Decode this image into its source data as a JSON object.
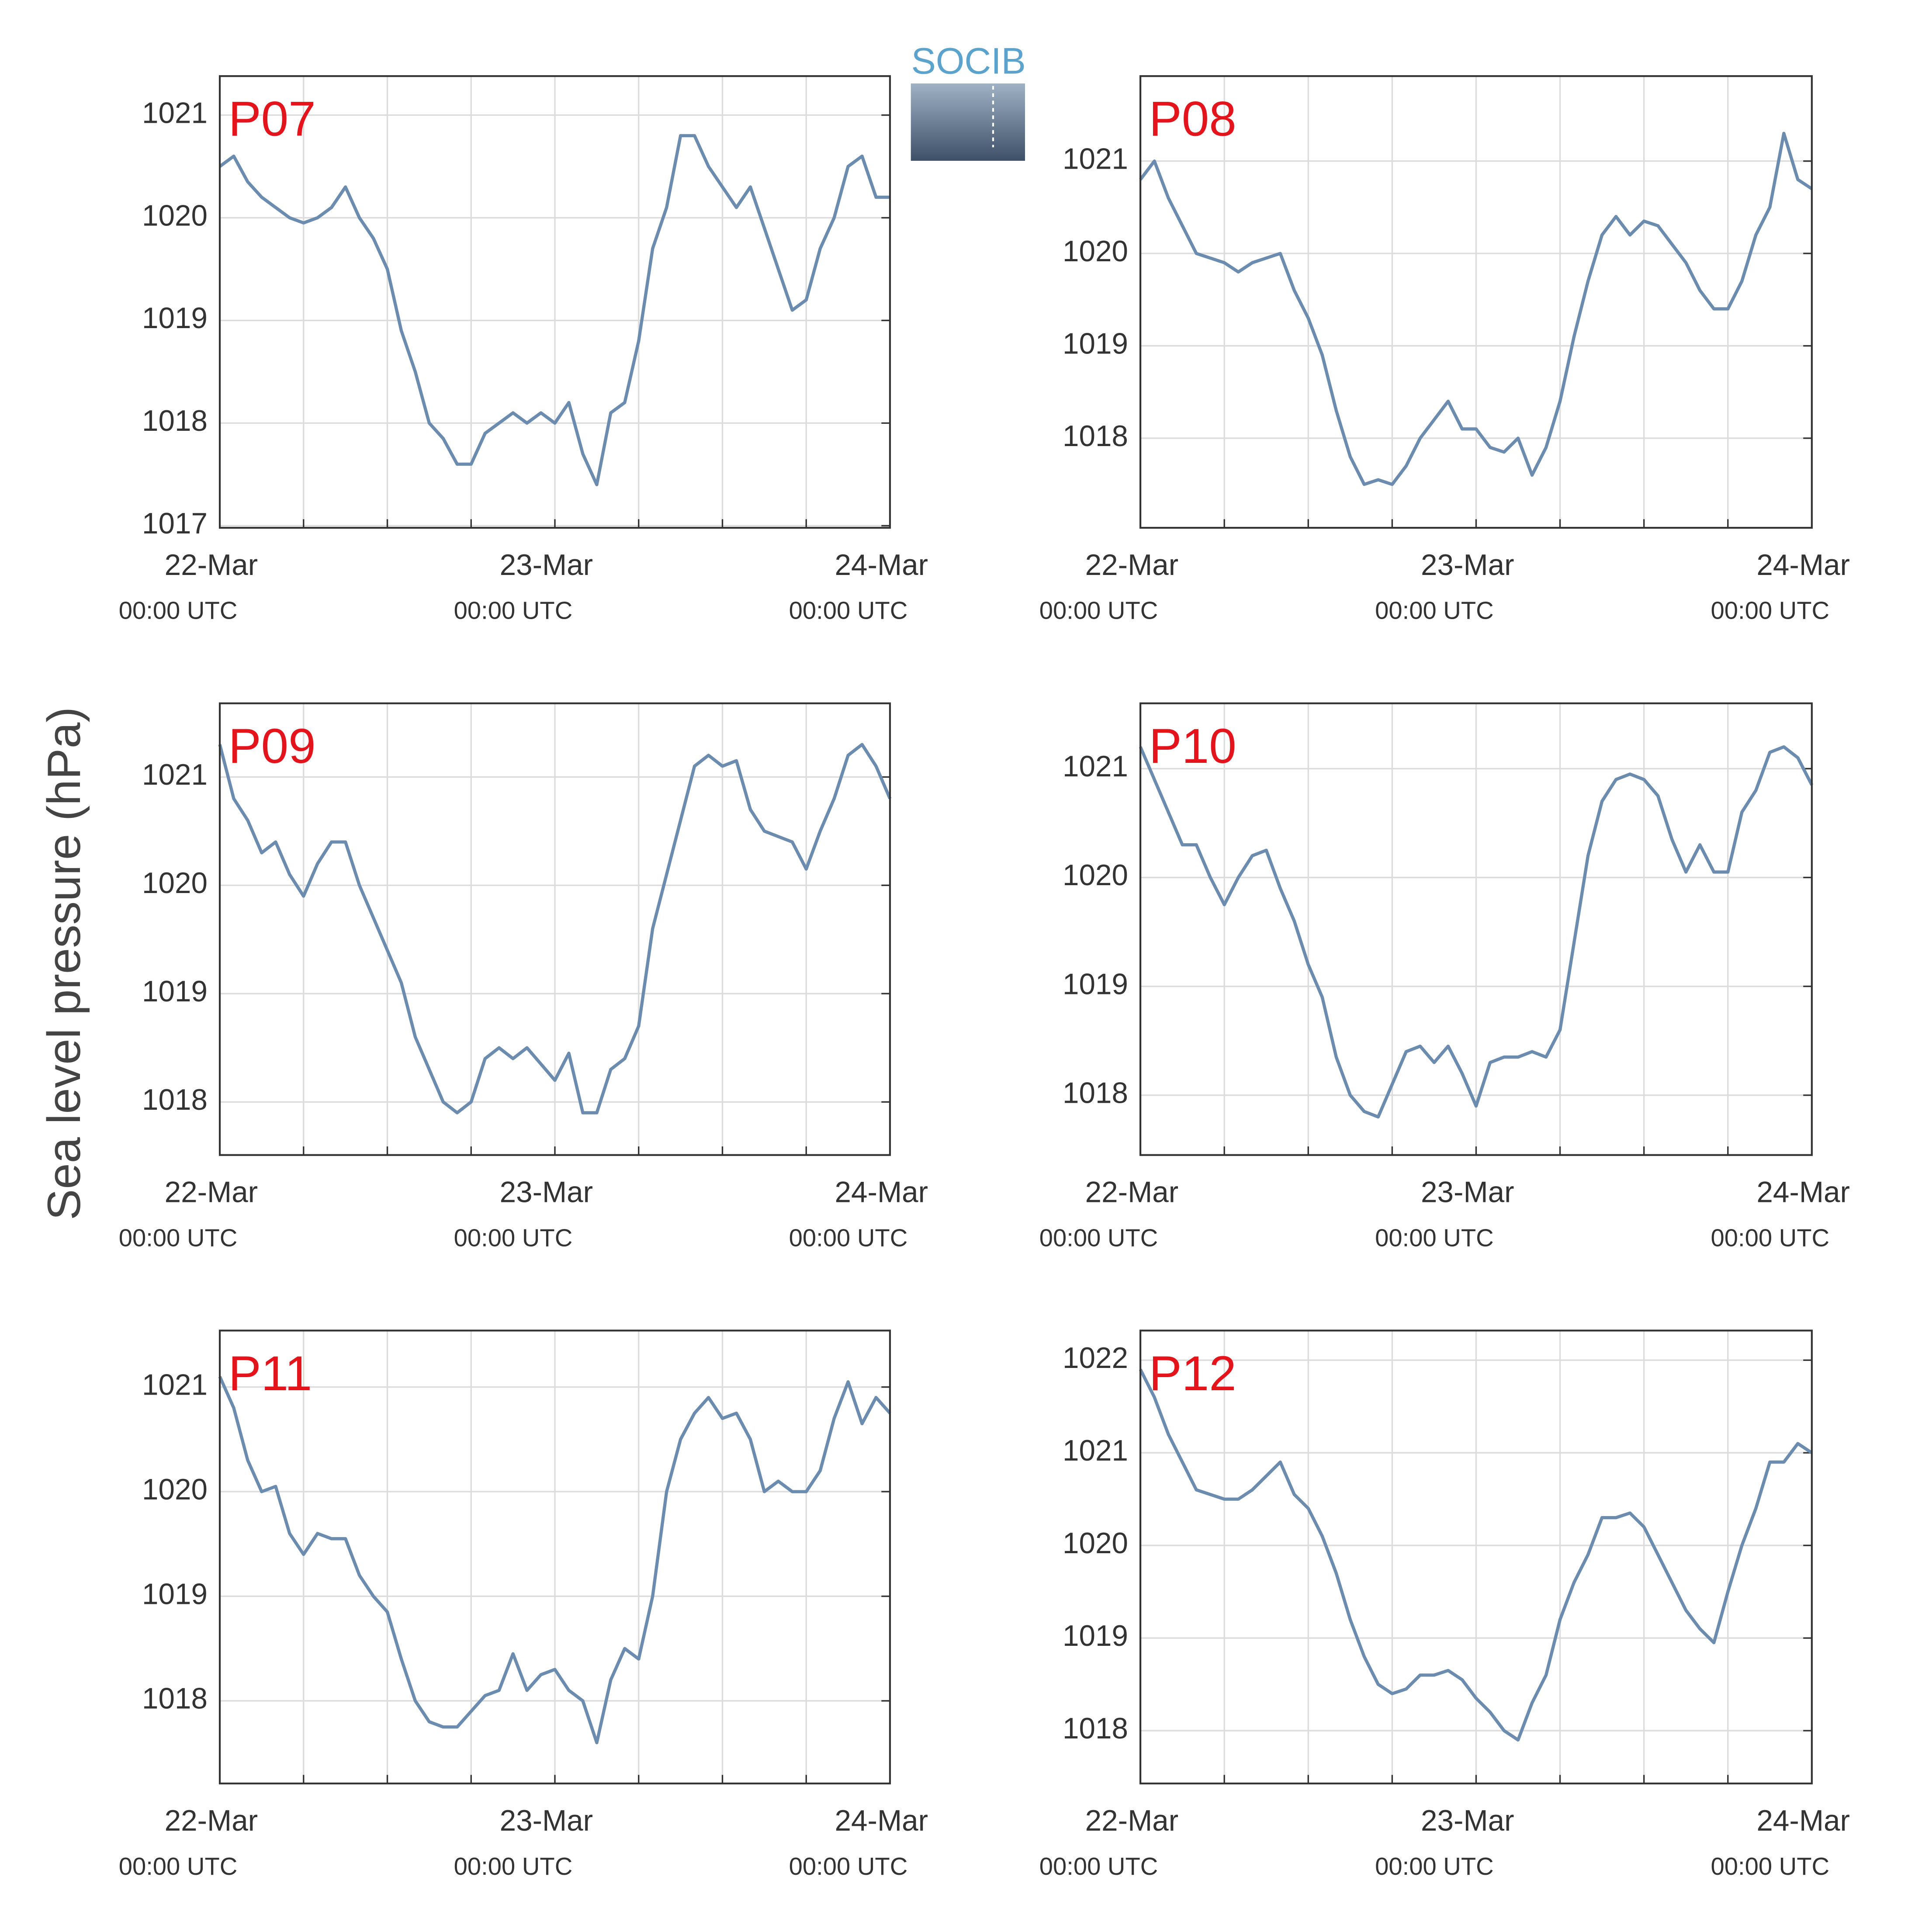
{
  "ylabel": "Sea level pressure (hPa)",
  "logo": "SOCIB",
  "chart_data": [
    {
      "type": "line",
      "title": "P07",
      "x": [
        0,
        1,
        2,
        3,
        4,
        5,
        6,
        7,
        8,
        9,
        10,
        11,
        12,
        13,
        14,
        15,
        16,
        17,
        18,
        19,
        20,
        21,
        22,
        23,
        24,
        25,
        26,
        27,
        28,
        29,
        30,
        31,
        32,
        33,
        34,
        35,
        36,
        37,
        38,
        39,
        40,
        41,
        42,
        43,
        44,
        45,
        46,
        47,
        48
      ],
      "series": [
        {
          "color": "#6b8cae",
          "values": [
            1020.5,
            1020.6,
            1020.35,
            1020.2,
            1020.1,
            1020.0,
            1019.95,
            1020.0,
            1020.1,
            1020.3,
            1020.0,
            1019.8,
            1019.5,
            1018.9,
            1018.5,
            1018.0,
            1017.85,
            1017.6,
            1017.6,
            1017.9,
            1018.0,
            1018.1,
            1018.0,
            1018.1,
            1018.0,
            1018.2,
            1017.7,
            1017.4,
            1018.1,
            1018.2,
            1018.8,
            1019.7,
            1020.1,
            1020.8,
            1020.8,
            1020.5,
            1020.3,
            1020.1,
            1020.3,
            1019.9,
            1019.5,
            1019.1,
            1019.2,
            1019.7,
            1020.0,
            1020.5,
            1020.6,
            1020.2,
            1020.2
          ]
        }
      ],
      "xlim": [
        0,
        48
      ],
      "xticks": [
        {
          "value": 0,
          "label": "22-Mar",
          "sublabel": "00:00 UTC"
        },
        {
          "value": 24,
          "label": "23-Mar",
          "sublabel": "00:00 UTC"
        },
        {
          "value": 48,
          "label": "24-Mar",
          "sublabel": "00:00 UTC"
        }
      ],
      "xminorticks": [
        6,
        12,
        18,
        30,
        36,
        42
      ],
      "ylim": [
        1016.98,
        1021.38
      ],
      "yticks": [
        1017,
        1018,
        1019,
        1020,
        1021
      ],
      "grid": true
    },
    {
      "type": "line",
      "title": "P08",
      "x": [
        0,
        1,
        2,
        3,
        4,
        5,
        6,
        7,
        8,
        9,
        10,
        11,
        12,
        13,
        14,
        15,
        16,
        17,
        18,
        19,
        20,
        21,
        22,
        23,
        24,
        25,
        26,
        27,
        28,
        29,
        30,
        31,
        32,
        33,
        34,
        35,
        36,
        37,
        38,
        39,
        40,
        41,
        42,
        43,
        44,
        45,
        46,
        47,
        48
      ],
      "series": [
        {
          "color": "#6b8cae",
          "values": [
            1020.8,
            1021.0,
            1020.6,
            1020.3,
            1020.0,
            1019.95,
            1019.9,
            1019.8,
            1019.9,
            1019.95,
            1020.0,
            1019.6,
            1019.3,
            1018.9,
            1018.3,
            1017.8,
            1017.5,
            1017.55,
            1017.5,
            1017.7,
            1018.0,
            1018.2,
            1018.4,
            1018.1,
            1018.1,
            1017.9,
            1017.85,
            1018.0,
            1017.6,
            1017.9,
            1018.4,
            1019.1,
            1019.7,
            1020.2,
            1020.4,
            1020.2,
            1020.35,
            1020.3,
            1020.1,
            1019.9,
            1019.6,
            1019.4,
            1019.4,
            1019.7,
            1020.2,
            1020.5,
            1021.3,
            1020.8,
            1020.7
          ]
        }
      ],
      "xlim": [
        0,
        48
      ],
      "xticks": [
        {
          "value": 0,
          "label": "22-Mar",
          "sublabel": "00:00 UTC"
        },
        {
          "value": 24,
          "label": "23-Mar",
          "sublabel": "00:00 UTC"
        },
        {
          "value": 48,
          "label": "24-Mar",
          "sublabel": "00:00 UTC"
        }
      ],
      "xminorticks": [
        6,
        12,
        18,
        30,
        36,
        42
      ],
      "ylim": [
        1017.03,
        1021.92
      ],
      "yticks": [
        1018,
        1019,
        1020,
        1021
      ],
      "grid": true
    },
    {
      "type": "line",
      "title": "P09",
      "x": [
        0,
        1,
        2,
        3,
        4,
        5,
        6,
        7,
        8,
        9,
        10,
        11,
        12,
        13,
        14,
        15,
        16,
        17,
        18,
        19,
        20,
        21,
        22,
        23,
        24,
        25,
        26,
        27,
        28,
        29,
        30,
        31,
        32,
        33,
        34,
        35,
        36,
        37,
        38,
        39,
        40,
        41,
        42,
        43,
        44,
        45,
        46,
        47,
        48
      ],
      "series": [
        {
          "color": "#6b8cae",
          "values": [
            1021.3,
            1020.8,
            1020.6,
            1020.3,
            1020.4,
            1020.1,
            1019.9,
            1020.2,
            1020.4,
            1020.4,
            1020.0,
            1019.7,
            1019.4,
            1019.1,
            1018.6,
            1018.3,
            1018.0,
            1017.9,
            1018.0,
            1018.4,
            1018.5,
            1018.4,
            1018.5,
            1018.35,
            1018.2,
            1018.45,
            1017.9,
            1017.9,
            1018.3,
            1018.4,
            1018.7,
            1019.6,
            1020.1,
            1020.6,
            1021.1,
            1021.2,
            1021.1,
            1021.15,
            1020.7,
            1020.5,
            1020.45,
            1020.4,
            1020.15,
            1020.5,
            1020.8,
            1021.2,
            1021.3,
            1021.1,
            1020.8
          ]
        }
      ],
      "xlim": [
        0,
        48
      ],
      "xticks": [
        {
          "value": 0,
          "label": "22-Mar",
          "sublabel": "00:00 UTC"
        },
        {
          "value": 24,
          "label": "23-Mar",
          "sublabel": "00:00 UTC"
        },
        {
          "value": 48,
          "label": "24-Mar",
          "sublabel": "00:00 UTC"
        }
      ],
      "xminorticks": [
        6,
        12,
        18,
        30,
        36,
        42
      ],
      "ylim": [
        1017.51,
        1021.68
      ],
      "yticks": [
        1018,
        1019,
        1020,
        1021
      ],
      "grid": true
    },
    {
      "type": "line",
      "title": "P10",
      "x": [
        0,
        1,
        2,
        3,
        4,
        5,
        6,
        7,
        8,
        9,
        10,
        11,
        12,
        13,
        14,
        15,
        16,
        17,
        18,
        19,
        20,
        21,
        22,
        23,
        24,
        25,
        26,
        27,
        28,
        29,
        30,
        31,
        32,
        33,
        34,
        35,
        36,
        37,
        38,
        39,
        40,
        41,
        42,
        43,
        44,
        45,
        46,
        47,
        48
      ],
      "series": [
        {
          "color": "#6b8cae",
          "values": [
            1021.2,
            1020.9,
            1020.6,
            1020.3,
            1020.3,
            1020.0,
            1019.75,
            1020.0,
            1020.2,
            1020.25,
            1019.9,
            1019.6,
            1019.2,
            1018.9,
            1018.35,
            1018.0,
            1017.85,
            1017.8,
            1018.1,
            1018.4,
            1018.45,
            1018.3,
            1018.45,
            1018.2,
            1017.9,
            1018.3,
            1018.35,
            1018.35,
            1018.4,
            1018.35,
            1018.6,
            1019.4,
            1020.2,
            1020.7,
            1020.9,
            1020.95,
            1020.9,
            1020.75,
            1020.35,
            1020.05,
            1020.3,
            1020.05,
            1020.05,
            1020.6,
            1020.8,
            1021.15,
            1021.2,
            1021.1,
            1020.85
          ]
        }
      ],
      "xlim": [
        0,
        48
      ],
      "xticks": [
        {
          "value": 0,
          "label": "22-Mar",
          "sublabel": "00:00 UTC"
        },
        {
          "value": 24,
          "label": "23-Mar",
          "sublabel": "00:00 UTC"
        },
        {
          "value": 48,
          "label": "24-Mar",
          "sublabel": "00:00 UTC"
        }
      ],
      "xminorticks": [
        6,
        12,
        18,
        30,
        36,
        42
      ],
      "ylim": [
        1017.45,
        1021.6
      ],
      "yticks": [
        1018,
        1019,
        1020,
        1021
      ],
      "grid": true
    },
    {
      "type": "line",
      "title": "P11",
      "x": [
        0,
        1,
        2,
        3,
        4,
        5,
        6,
        7,
        8,
        9,
        10,
        11,
        12,
        13,
        14,
        15,
        16,
        17,
        18,
        19,
        20,
        21,
        22,
        23,
        24,
        25,
        26,
        27,
        28,
        29,
        30,
        31,
        32,
        33,
        34,
        35,
        36,
        37,
        38,
        39,
        40,
        41,
        42,
        43,
        44,
        45,
        46,
        47,
        48
      ],
      "series": [
        {
          "color": "#6b8cae",
          "values": [
            1021.1,
            1020.8,
            1020.3,
            1020.0,
            1020.05,
            1019.6,
            1019.4,
            1019.6,
            1019.55,
            1019.55,
            1019.2,
            1019.0,
            1018.85,
            1018.4,
            1018.0,
            1017.8,
            1017.75,
            1017.75,
            1017.9,
            1018.05,
            1018.1,
            1018.45,
            1018.1,
            1018.25,
            1018.3,
            1018.1,
            1018.0,
            1017.6,
            1018.2,
            1018.5,
            1018.4,
            1019.0,
            1020.0,
            1020.5,
            1020.75,
            1020.9,
            1020.7,
            1020.75,
            1020.5,
            1020.0,
            1020.1,
            1020.0,
            1020.0,
            1020.2,
            1020.7,
            1021.05,
            1020.65,
            1020.9,
            1020.75
          ]
        }
      ],
      "xlim": [
        0,
        48
      ],
      "xticks": [
        {
          "value": 0,
          "label": "22-Mar",
          "sublabel": "00:00 UTC"
        },
        {
          "value": 24,
          "label": "23-Mar",
          "sublabel": "00:00 UTC"
        },
        {
          "value": 48,
          "label": "24-Mar",
          "sublabel": "00:00 UTC"
        }
      ],
      "xminorticks": [
        6,
        12,
        18,
        30,
        36,
        42
      ],
      "ylim": [
        1017.21,
        1021.54
      ],
      "yticks": [
        1018,
        1019,
        1020,
        1021
      ],
      "grid": true
    },
    {
      "type": "line",
      "title": "P12",
      "x": [
        0,
        1,
        2,
        3,
        4,
        5,
        6,
        7,
        8,
        9,
        10,
        11,
        12,
        13,
        14,
        15,
        16,
        17,
        18,
        19,
        20,
        21,
        22,
        23,
        24,
        25,
        26,
        27,
        28,
        29,
        30,
        31,
        32,
        33,
        34,
        35,
        36,
        37,
        38,
        39,
        40,
        41,
        42,
        43,
        44,
        45,
        46,
        47,
        48
      ],
      "series": [
        {
          "color": "#6b8cae",
          "values": [
            1021.9,
            1021.6,
            1021.2,
            1020.9,
            1020.6,
            1020.55,
            1020.5,
            1020.5,
            1020.6,
            1020.75,
            1020.9,
            1020.55,
            1020.4,
            1020.1,
            1019.7,
            1019.2,
            1018.8,
            1018.5,
            1018.4,
            1018.45,
            1018.6,
            1018.6,
            1018.65,
            1018.55,
            1018.35,
            1018.2,
            1018.0,
            1017.9,
            1018.3,
            1018.6,
            1019.2,
            1019.6,
            1019.9,
            1020.3,
            1020.3,
            1020.35,
            1020.2,
            1019.9,
            1019.6,
            1019.3,
            1019.1,
            1018.95,
            1019.5,
            1020.0,
            1020.4,
            1020.9,
            1020.9,
            1021.1,
            1021.0
          ]
        }
      ],
      "xlim": [
        0,
        48
      ],
      "xticks": [
        {
          "value": 0,
          "label": "22-Mar",
          "sublabel": "00:00 UTC"
        },
        {
          "value": 24,
          "label": "23-Mar",
          "sublabel": "00:00 UTC"
        },
        {
          "value": 48,
          "label": "24-Mar",
          "sublabel": "00:00 UTC"
        }
      ],
      "xminorticks": [
        6,
        12,
        18,
        30,
        36,
        42
      ],
      "ylim": [
        1017.43,
        1022.32
      ],
      "yticks": [
        1018,
        1019,
        1020,
        1021,
        1022
      ],
      "grid": true
    }
  ]
}
